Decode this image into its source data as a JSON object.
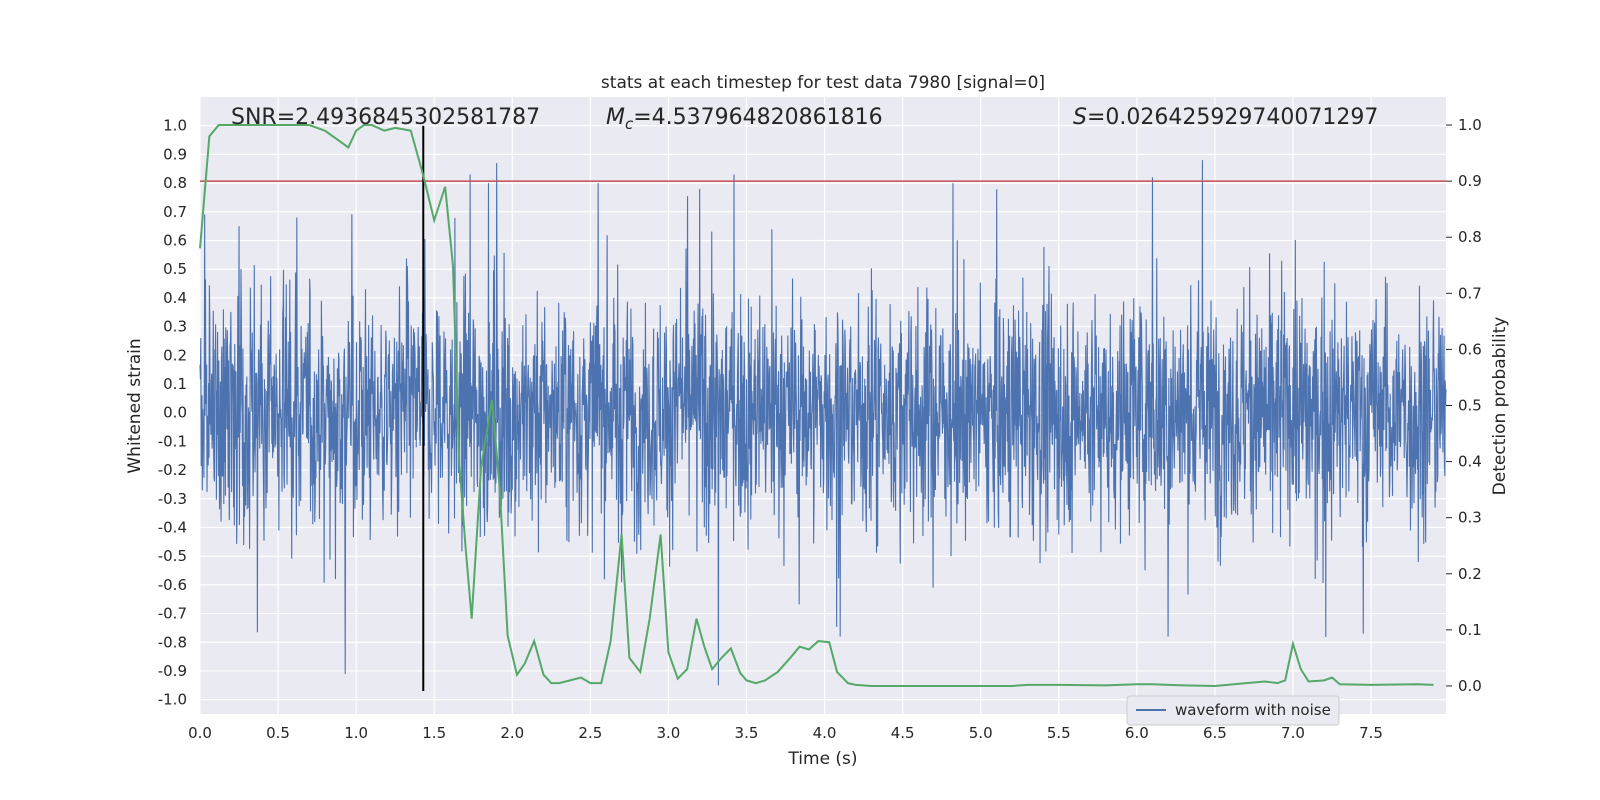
{
  "chart_data": {
    "type": "line",
    "title": "stats at each timestep for test data 7980 [signal=0]",
    "xlabel": "Time (s)",
    "ylabel_left": "Whitened strain",
    "ylabel_right": "Detection probability",
    "xlim": [
      0.0,
      7.98
    ],
    "ylim_left": [
      -1.05,
      1.1
    ],
    "ylim_right": [
      -0.05,
      1.05
    ],
    "x_ticks": [
      0.0,
      0.5,
      1.0,
      1.5,
      2.0,
      2.5,
      3.0,
      3.5,
      4.0,
      4.5,
      5.0,
      5.5,
      6.0,
      6.5,
      7.0,
      7.5
    ],
    "y_left_ticks": [
      -1.0,
      -0.9,
      -0.8,
      -0.7,
      -0.6,
      -0.5,
      -0.4,
      -0.3,
      -0.2,
      -0.1,
      0.0,
      0.1,
      0.2,
      0.3,
      0.4,
      0.5,
      0.6,
      0.7,
      0.8,
      0.9,
      1.0
    ],
    "y_right_ticks": [
      0.0,
      0.1,
      0.2,
      0.3,
      0.4,
      0.5,
      0.6,
      0.7,
      0.8,
      0.9,
      1.0
    ],
    "grid": true,
    "legend_placement": "lower-right",
    "annotations": {
      "snr": "SNR=2.4936845302581787",
      "mc_symbol": "M",
      "mc_sub": "c",
      "mc_value": "=4.537964820861816",
      "s_symbol": "S",
      "s_value": "=0.026425929740071297"
    },
    "threshold_line": {
      "y_right": 0.9,
      "color": "#c44e52"
    },
    "vertical_marker": {
      "x": 1.43,
      "y_left_range": [
        -0.97,
        1.0
      ],
      "color": "#000000"
    },
    "series": [
      {
        "name": "waveform with noise",
        "axis": "left",
        "color": "#4c72b0",
        "seed": 7980,
        "sample_rate_hz": 400,
        "peaks": [
          {
            "x": 0.03,
            "y": 0.69
          },
          {
            "x": 0.25,
            "y": 0.65
          },
          {
            "x": 0.62,
            "y": 0.68
          },
          {
            "x": 0.93,
            "y": -0.91
          },
          {
            "x": 1.43,
            "y": 0.96
          },
          {
            "x": 1.73,
            "y": 0.83
          },
          {
            "x": 1.9,
            "y": 0.87
          },
          {
            "x": 2.55,
            "y": 0.8
          },
          {
            "x": 3.2,
            "y": 0.78
          },
          {
            "x": 3.32,
            "y": -0.95
          },
          {
            "x": 3.42,
            "y": 0.83
          },
          {
            "x": 4.1,
            "y": -0.78
          },
          {
            "x": 6.1,
            "y": 0.82
          },
          {
            "x": 6.2,
            "y": -0.78
          },
          {
            "x": 6.42,
            "y": 0.88
          },
          {
            "x": 7.45,
            "y": -0.77
          }
        ]
      },
      {
        "name": "detection probability",
        "axis": "right",
        "color": "#55a868",
        "x": [
          0.0,
          0.06,
          0.12,
          0.2,
          0.4,
          0.6,
          0.7,
          0.8,
          0.9,
          0.95,
          1.0,
          1.05,
          1.1,
          1.18,
          1.25,
          1.35,
          1.43,
          1.5,
          1.57,
          1.62,
          1.66,
          1.7,
          1.74,
          1.8,
          1.87,
          1.92,
          1.97,
          2.03,
          2.08,
          2.14,
          2.2,
          2.25,
          2.3,
          2.37,
          2.44,
          2.5,
          2.57,
          2.63,
          2.7,
          2.75,
          2.82,
          2.88,
          2.95,
          3.0,
          3.06,
          3.12,
          3.18,
          3.23,
          3.28,
          3.34,
          3.4,
          3.46,
          3.5,
          3.56,
          3.62,
          3.7,
          3.78,
          3.84,
          3.9,
          3.96,
          4.03,
          4.08,
          4.15,
          4.2,
          4.3,
          4.5,
          5.0,
          5.2,
          5.3,
          5.5,
          5.8,
          6.0,
          6.1,
          6.2,
          6.3,
          6.5,
          6.7,
          6.82,
          6.9,
          6.95,
          7.0,
          7.05,
          7.1,
          7.2,
          7.25,
          7.3,
          7.5,
          7.8,
          7.9
        ],
        "y": [
          0.78,
          0.98,
          1.0,
          1.0,
          1.0,
          1.0,
          1.0,
          0.99,
          0.97,
          0.96,
          0.99,
          1.0,
          1.0,
          0.99,
          0.995,
          0.99,
          0.91,
          0.83,
          0.89,
          0.75,
          0.4,
          0.25,
          0.12,
          0.39,
          0.51,
          0.35,
          0.09,
          0.02,
          0.04,
          0.08,
          0.02,
          0.005,
          0.005,
          0.01,
          0.015,
          0.005,
          0.005,
          0.08,
          0.27,
          0.05,
          0.025,
          0.12,
          0.27,
          0.06,
          0.013,
          0.03,
          0.12,
          0.07,
          0.03,
          0.05,
          0.067,
          0.023,
          0.01,
          0.005,
          0.01,
          0.025,
          0.05,
          0.07,
          0.065,
          0.08,
          0.078,
          0.025,
          0.005,
          0.002,
          0.0,
          0.0,
          0.0,
          0.0,
          0.002,
          0.002,
          0.001,
          0.003,
          0.003,
          0.002,
          0.001,
          0.0,
          0.005,
          0.008,
          0.005,
          0.01,
          0.075,
          0.03,
          0.008,
          0.01,
          0.015,
          0.003,
          0.002,
          0.003,
          0.002
        ]
      }
    ]
  }
}
